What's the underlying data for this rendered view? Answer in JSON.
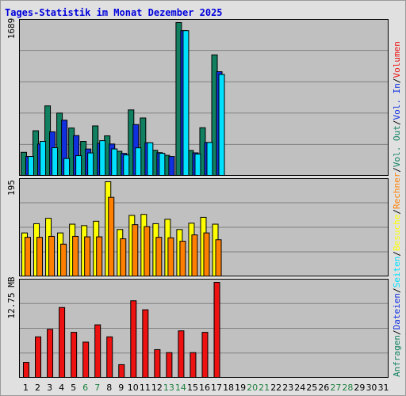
{
  "title": "Tages-Statistik im Monat Dezember 2025",
  "colors": {
    "frame_bg": "#e0e0e0",
    "plot_bg": "#c0c0c0",
    "grid": "#808080",
    "title": "#0000dd",
    "anfragen": "#108060",
    "dateien": "#1030e0",
    "seiten": "#00e0ff",
    "besuche": "#ffff00",
    "rechner": "#ff8000",
    "volumen": "#ee1111",
    "weekday_label": "#000000",
    "weekend_label": "#208040"
  },
  "right_legend": [
    {
      "text": "Anfragen",
      "color": "#108060"
    },
    {
      "text": "/",
      "color": "#000000"
    },
    {
      "text": "Dateien",
      "color": "#1030e0"
    },
    {
      "text": "/",
      "color": "#000000"
    },
    {
      "text": "Seiten",
      "color": "#00e0ff"
    },
    {
      "text": "/",
      "color": "#000000"
    },
    {
      "text": "Besuche",
      "color": "#ffff00"
    },
    {
      "text": "/",
      "color": "#000000"
    },
    {
      "text": "Rechner",
      "color": "#ff8000"
    },
    {
      "text": "/",
      "color": "#000000"
    },
    {
      "text": "Vol. Out",
      "color": "#108060"
    },
    {
      "text": "/",
      "color": "#000000"
    },
    {
      "text": "Vol. In",
      "color": "#1030e0"
    },
    {
      "text": "/",
      "color": "#000000"
    },
    {
      "text": "Volumen",
      "color": "#ee1111"
    }
  ],
  "chart_data": {
    "type": "bar",
    "title": "Tages-Statistik im Monat Dezember 2025",
    "categories": [
      "1",
      "2",
      "3",
      "4",
      "5",
      "6",
      "7",
      "8",
      "9",
      "10",
      "11",
      "12",
      "13",
      "14",
      "15",
      "16",
      "17",
      "18",
      "19",
      "20",
      "21",
      "22",
      "23",
      "24",
      "25",
      "26",
      "27",
      "28",
      "29",
      "30",
      "31"
    ],
    "weekend_days": [
      "6",
      "7",
      "13",
      "14",
      "20",
      "21",
      "27",
      "28"
    ],
    "panels": [
      {
        "ylabel": "1689",
        "ymax": 1689,
        "series": [
          {
            "name": "Anfragen",
            "color": "#108060",
            "values": [
              263,
              500,
              773,
              694,
              530,
              383,
              553,
              444,
              274,
              729,
              640,
              285,
              230,
              1689,
              283,
              533,
              1334,
              0,
              0,
              0,
              0,
              0,
              0,
              0,
              0,
              0,
              0,
              0,
              0,
              0,
              0
            ]
          },
          {
            "name": "Dateien",
            "color": "#1030e0",
            "values": [
              217,
              354,
              488,
              616,
              447,
              299,
              361,
              354,
              251,
              568,
              368,
              259,
              217,
              1600,
              257,
              371,
              1149,
              0,
              0,
              0,
              0,
              0,
              0,
              0,
              0,
              0,
              0,
              0,
              0,
              0,
              0
            ]
          },
          {
            "name": "Seiten",
            "color": "#00e0ff",
            "values": [
              217,
              383,
              313,
              195,
              226,
              256,
              391,
              300,
              234,
              312,
              368,
              252,
              0,
              1600,
              244,
              371,
              1119,
              0,
              0,
              0,
              0,
              0,
              0,
              0,
              0,
              0,
              0,
              0,
              0,
              0,
              0
            ]
          }
        ]
      },
      {
        "ylabel": "195",
        "ymax": 195,
        "series": [
          {
            "name": "Besuche",
            "color": "#ffff00",
            "values": [
              90,
              109,
              120,
              90,
              108,
              105,
              114,
              195,
              97,
              126,
              128,
              109,
              118,
              97,
              110,
              122,
              108,
              0,
              0,
              0,
              0,
              0,
              0,
              0,
              0,
              0,
              0,
              0,
              0,
              0,
              0
            ]
          },
          {
            "name": "Rechner",
            "color": "#ff8000",
            "values": [
              81,
              81,
              83,
              67,
              83,
              82,
              82,
              163,
              78,
              107,
              103,
              81,
              80,
              73,
              86,
              90,
              76,
              0,
              0,
              0,
              0,
              0,
              0,
              0,
              0,
              0,
              0,
              0,
              0,
              0,
              0
            ]
          }
        ]
      },
      {
        "ylabel": "12.75 MB",
        "ymax": 12.75,
        "series": [
          {
            "name": "Volumen",
            "color": "#ee1111",
            "values": [
              2.1,
              5.5,
              6.5,
              9.4,
              6.1,
              4.8,
              7.1,
              5.5,
              1.8,
              10.3,
              9.1,
              3.8,
              3.4,
              6.3,
              3.4,
              6.1,
              12.75,
              0,
              0,
              0,
              0,
              0,
              0,
              0,
              0,
              0,
              0,
              0,
              0,
              0,
              0
            ]
          }
        ]
      }
    ],
    "grid": true,
    "legend": "right-vertical"
  }
}
